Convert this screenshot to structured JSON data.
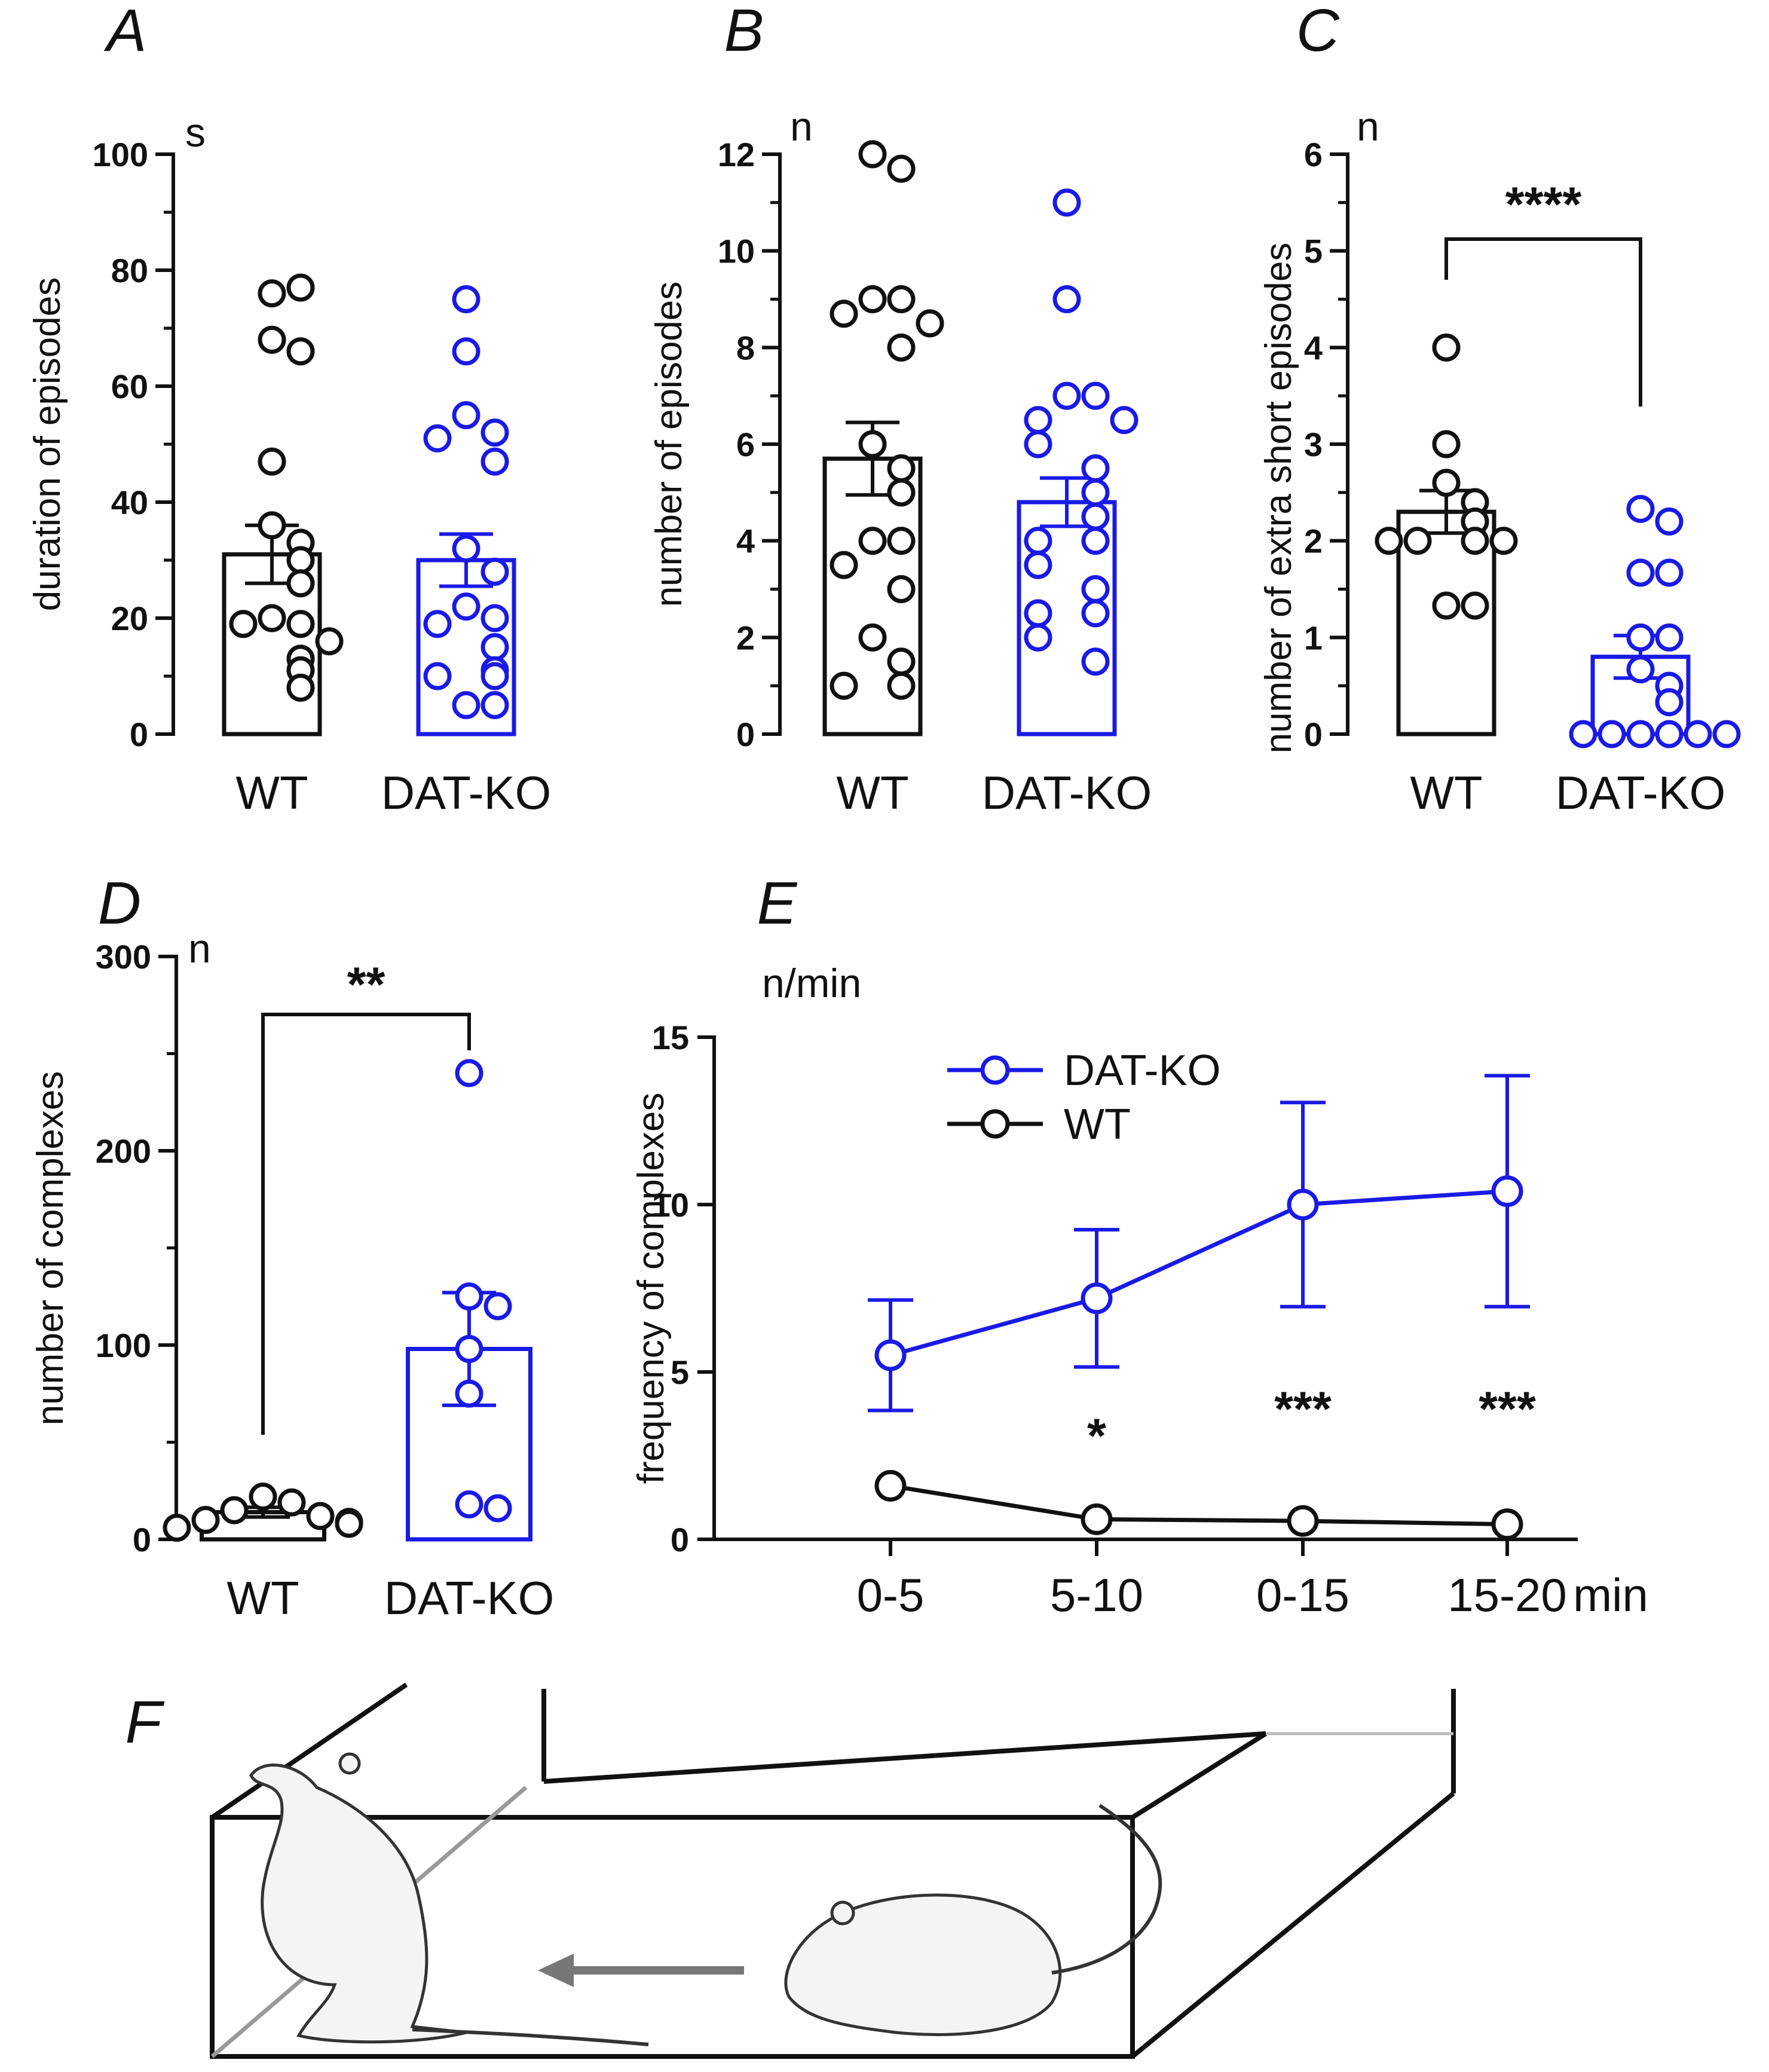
{
  "colors": {
    "wt": "#111111",
    "dat_ko": "#1a1ae6",
    "arrow": "#888888",
    "bg": "#ffffff"
  },
  "chart_data": [
    {
      "id": "A",
      "type": "bar",
      "panel_label": "A",
      "unit": "s",
      "ylabel": "duration of episodes",
      "ylim": [
        0,
        100
      ],
      "yticks": [
        "0",
        "20",
        "40",
        "60",
        "80",
        "100"
      ],
      "categories": [
        "WT",
        "DAT-KO"
      ],
      "series": [
        {
          "name": "WT",
          "mean": 31,
          "sem": 5,
          "points": [
            76,
            77,
            68,
            66,
            47,
            36,
            33,
            30,
            26,
            20,
            19,
            19,
            16,
            13,
            11,
            8
          ]
        },
        {
          "name": "DAT-KO",
          "mean": 30,
          "sem": 4.5,
          "points": [
            75,
            66,
            55,
            52,
            51,
            47,
            32,
            28,
            22,
            20,
            19,
            15,
            11,
            10,
            10,
            5,
            5
          ]
        }
      ],
      "significance": null
    },
    {
      "id": "B",
      "type": "bar",
      "panel_label": "B",
      "unit": "n",
      "ylabel": "number of episodes",
      "ylim": [
        0,
        12
      ],
      "yticks": [
        "0",
        "2",
        "4",
        "6",
        "8",
        "10",
        "12"
      ],
      "categories": [
        "WT",
        "DAT-KO"
      ],
      "series": [
        {
          "name": "WT",
          "mean": 5.7,
          "sem": 0.75,
          "points": [
            12,
            11.7,
            9,
            9,
            8.7,
            8.5,
            8,
            6,
            5.5,
            5,
            4,
            4,
            3.5,
            3,
            2,
            1.5,
            1,
            1
          ]
        },
        {
          "name": "DAT-KO",
          "mean": 4.8,
          "sem": 0.5,
          "points": [
            11,
            9,
            7,
            7,
            6.5,
            6.5,
            6,
            5.5,
            5,
            4.5,
            4,
            4,
            3.5,
            3,
            2.5,
            2.5,
            2,
            1.5
          ]
        }
      ],
      "significance": null
    },
    {
      "id": "C",
      "type": "bar",
      "panel_label": "C",
      "unit": "n",
      "ylabel": "number of extra short episodes",
      "ylim": [
        0,
        6
      ],
      "yticks": [
        "0",
        "1",
        "2",
        "3",
        "4",
        "5",
        "6"
      ],
      "categories": [
        "WT",
        "DAT-KO"
      ],
      "series": [
        {
          "name": "WT",
          "mean": 2.3,
          "sem": 0.22,
          "points": [
            4,
            3,
            2.6,
            2.4,
            2.2,
            2,
            2,
            2,
            2,
            1.33,
            1.33
          ]
        },
        {
          "name": "DAT-KO",
          "mean": 0.8,
          "sem": 0.22,
          "points": [
            2.33,
            2.2,
            1.67,
            1.67,
            1,
            1,
            0.67,
            0.5,
            0.33,
            0,
            0,
            0,
            0,
            0,
            0
          ]
        }
      ],
      "significance": "****"
    },
    {
      "id": "D",
      "type": "bar",
      "panel_label": "D",
      "unit": "n",
      "ylabel": "number of complexes",
      "ylim": [
        0,
        300
      ],
      "yticks": [
        "0",
        "100",
        "200",
        "300"
      ],
      "categories": [
        "WT",
        "DAT-KO"
      ],
      "series": [
        {
          "name": "WT",
          "mean": 14,
          "sem": 2.5,
          "points": [
            22,
            19,
            15,
            12,
            10,
            9,
            8,
            6
          ]
        },
        {
          "name": "DAT-KO",
          "mean": 98,
          "sem": 29,
          "points": [
            240,
            125,
            120,
            98,
            75,
            18,
            16
          ]
        }
      ],
      "significance": "**"
    },
    {
      "id": "E",
      "type": "line",
      "panel_label": "E",
      "unit": "n/min",
      "ylabel": "frequency of complexes",
      "ylim": [
        0,
        15
      ],
      "yticks": [
        "0",
        "5",
        "10",
        "15"
      ],
      "x": [
        "0-5",
        "5-10",
        "0-15",
        "15-20"
      ],
      "x_unit": "min",
      "series": [
        {
          "name": "DAT-KO",
          "values": [
            5.5,
            7.2,
            10.0,
            10.4
          ],
          "err": [
            1.65,
            2.05,
            3.05,
            3.45
          ]
        },
        {
          "name": "WT",
          "values": [
            1.6,
            0.6,
            0.55,
            0.45
          ]
        }
      ],
      "significance": [
        "",
        "*",
        "***",
        "***"
      ],
      "legend": "top-left"
    }
  ],
  "illustration": {
    "panel_label": "F",
    "caption": ""
  }
}
